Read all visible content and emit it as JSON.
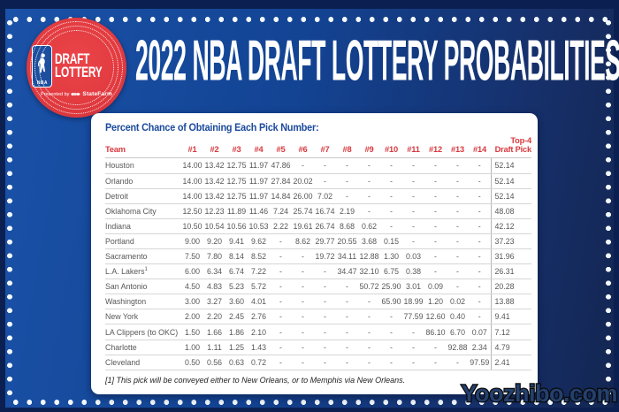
{
  "branding": {
    "badge": {
      "nba_label": "NBA",
      "title_line1": "DRAFT",
      "title_line2": "LOTTERY",
      "presented_by": "Presented by",
      "sponsor": "StateFarm"
    },
    "title": "2022 NBA DRAFT LOTTERY PROBABILITIES"
  },
  "table": {
    "heading": "Percent Chance of Obtaining Each Pick Number:",
    "top4_header": {
      "line1": "Top-4",
      "line2": "Draft Pick"
    },
    "footnote": "[1] This pick will be conveyed either to New Orleans, or to Memphis via New Orleans."
  },
  "chart_data": {
    "type": "table",
    "title": "2022 NBA Draft Lottery Probabilities",
    "columns": [
      "Team",
      "#1",
      "#2",
      "#3",
      "#4",
      "#5",
      "#6",
      "#7",
      "#8",
      "#9",
      "#10",
      "#11",
      "#12",
      "#13",
      "#14",
      "Top-4 Draft Pick"
    ],
    "rows": [
      {
        "team": "Houston",
        "footnote_sup": "",
        "values": [
          "14.00",
          "13.42",
          "12.75",
          "11.97",
          "47.86",
          "-",
          "-",
          "-",
          "-",
          "-",
          "-",
          "-",
          "-",
          "-"
        ],
        "top4": "52.14"
      },
      {
        "team": "Orlando",
        "footnote_sup": "",
        "values": [
          "14.00",
          "13.42",
          "12.75",
          "11.97",
          "27.84",
          "20.02",
          "-",
          "-",
          "-",
          "-",
          "-",
          "-",
          "-",
          "-"
        ],
        "top4": "52.14"
      },
      {
        "team": "Detroit",
        "footnote_sup": "",
        "values": [
          "14.00",
          "13.42",
          "12.75",
          "11.97",
          "14.84",
          "26.00",
          "7.02",
          "-",
          "-",
          "-",
          "-",
          "-",
          "-",
          "-"
        ],
        "top4": "52.14"
      },
      {
        "team": "Oklahoma City",
        "footnote_sup": "",
        "values": [
          "12.50",
          "12.23",
          "11.89",
          "11.46",
          "7.24",
          "25.74",
          "16.74",
          "2.19",
          "-",
          "-",
          "-",
          "-",
          "-",
          "-"
        ],
        "top4": "48.08"
      },
      {
        "team": "Indiana",
        "footnote_sup": "",
        "values": [
          "10.50",
          "10.54",
          "10.56",
          "10.53",
          "2.22",
          "19.61",
          "26.74",
          "8.68",
          "0.62",
          "-",
          "-",
          "-",
          "-",
          "-"
        ],
        "top4": "42.12"
      },
      {
        "team": "Portland",
        "footnote_sup": "",
        "values": [
          "9.00",
          "9.20",
          "9.41",
          "9.62",
          "-",
          "8.62",
          "29.77",
          "20.55",
          "3.68",
          "0.15",
          "-",
          "-",
          "-",
          "-"
        ],
        "top4": "37.23"
      },
      {
        "team": "Sacramento",
        "footnote_sup": "",
        "values": [
          "7.50",
          "7.80",
          "8.14",
          "8.52",
          "-",
          "-",
          "19.72",
          "34.11",
          "12.88",
          "1.30",
          "0.03",
          "-",
          "-",
          "-"
        ],
        "top4": "31.96"
      },
      {
        "team": "L.A. Lakers",
        "footnote_sup": "1",
        "values": [
          "6.00",
          "6.34",
          "6.74",
          "7.22",
          "-",
          "-",
          "-",
          "34.47",
          "32.10",
          "6.75",
          "0.38",
          "-",
          "-",
          "-"
        ],
        "top4": "26.31"
      },
      {
        "team": "San Antonio",
        "footnote_sup": "",
        "values": [
          "4.50",
          "4.83",
          "5.23",
          "5.72",
          "-",
          "-",
          "-",
          "-",
          "50.72",
          "25.90",
          "3.01",
          "0.09",
          "-",
          "-"
        ],
        "top4": "20.28"
      },
      {
        "team": "Washington",
        "footnote_sup": "",
        "values": [
          "3.00",
          "3.27",
          "3.60",
          "4.01",
          "-",
          "-",
          "-",
          "-",
          "-",
          "65.90",
          "18.99",
          "1.20",
          "0.02",
          "-"
        ],
        "top4": "13.88"
      },
      {
        "team": "New York",
        "footnote_sup": "",
        "values": [
          "2.00",
          "2.20",
          "2.45",
          "2.76",
          "-",
          "-",
          "-",
          "-",
          "-",
          "-",
          "77.59",
          "12.60",
          "0.40",
          "-"
        ],
        "top4": "9.41"
      },
      {
        "team": "LA Clippers (to OKC)",
        "footnote_sup": "",
        "values": [
          "1.50",
          "1.66",
          "1.86",
          "2.10",
          "-",
          "-",
          "-",
          "-",
          "-",
          "-",
          "-",
          "86.10",
          "6.70",
          "0.07"
        ],
        "top4": "7.12"
      },
      {
        "team": "Charlotte",
        "footnote_sup": "",
        "values": [
          "1.00",
          "1.11",
          "1.25",
          "1.43",
          "-",
          "-",
          "-",
          "-",
          "-",
          "-",
          "-",
          "-",
          "92.88",
          "2.34"
        ],
        "top4": "4.79"
      },
      {
        "team": "Cleveland",
        "footnote_sup": "",
        "values": [
          "0.50",
          "0.56",
          "0.63",
          "0.72",
          "-",
          "-",
          "-",
          "-",
          "-",
          "-",
          "-",
          "-",
          "-",
          "97.59"
        ],
        "top4": "2.41"
      }
    ]
  },
  "watermark": "Yoozhibo.com",
  "colors": {
    "frame_navy": "#0B2050",
    "background_blue": "#134393",
    "badge_red": "#E23B40",
    "header_red": "#D8383E",
    "heading_blue": "#1B4A9C",
    "value_gray": "#58585A"
  }
}
